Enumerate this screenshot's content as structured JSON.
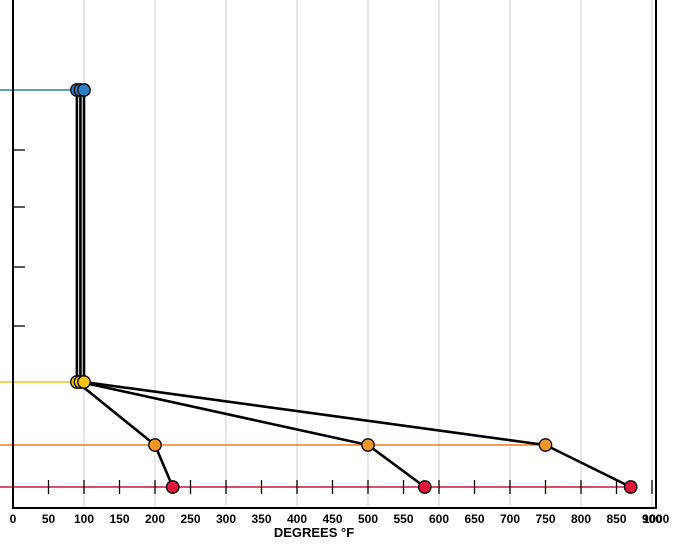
{
  "chart_data": {
    "type": "line",
    "title": "",
    "xlabel": "DEGREES °F",
    "ylabel": "",
    "xlim": [
      0,
      1000
    ],
    "x_ticks": [
      0,
      50,
      100,
      150,
      200,
      250,
      300,
      350,
      400,
      450,
      500,
      550,
      600,
      650,
      700,
      750,
      800,
      850,
      900,
      1000
    ],
    "x_gridlines": [
      100,
      200,
      300,
      400,
      500,
      600,
      700,
      800,
      900
    ],
    "grid": true,
    "levels": [
      {
        "name": "",
        "color": "#2b7fc4"
      },
      {
        "name": "",
        "color": "#f2c21b"
      },
      {
        "name": "",
        "color": "#ee7d22"
      },
      {
        "name": "",
        "color": "#d3143a"
      }
    ],
    "series": [
      {
        "name": "",
        "points": [
          {
            "level": 0,
            "x": 100,
            "color": "#2b7fc4"
          },
          {
            "level": 1,
            "x": 100,
            "color": "#f2c21b"
          },
          {
            "level": 2,
            "x": 750,
            "color": "#f0962a"
          },
          {
            "level": 3,
            "x": 870,
            "color": "#e0163c"
          }
        ]
      },
      {
        "name": "",
        "points": [
          {
            "level": 0,
            "x": 95,
            "color": "#2b7fc4"
          },
          {
            "level": 1,
            "x": 95,
            "color": "#f2c21b"
          },
          {
            "level": 2,
            "x": 500,
            "color": "#f0962a"
          },
          {
            "level": 3,
            "x": 580,
            "color": "#e0163c"
          }
        ]
      },
      {
        "name": "",
        "points": [
          {
            "level": 0,
            "x": 90,
            "color": "#2b7fc4"
          },
          {
            "level": 1,
            "x": 90,
            "color": "#f2c21b"
          },
          {
            "level": 2,
            "x": 200,
            "color": "#f0962a"
          },
          {
            "level": 3,
            "x": 225,
            "color": "#e0163c"
          }
        ]
      }
    ]
  }
}
